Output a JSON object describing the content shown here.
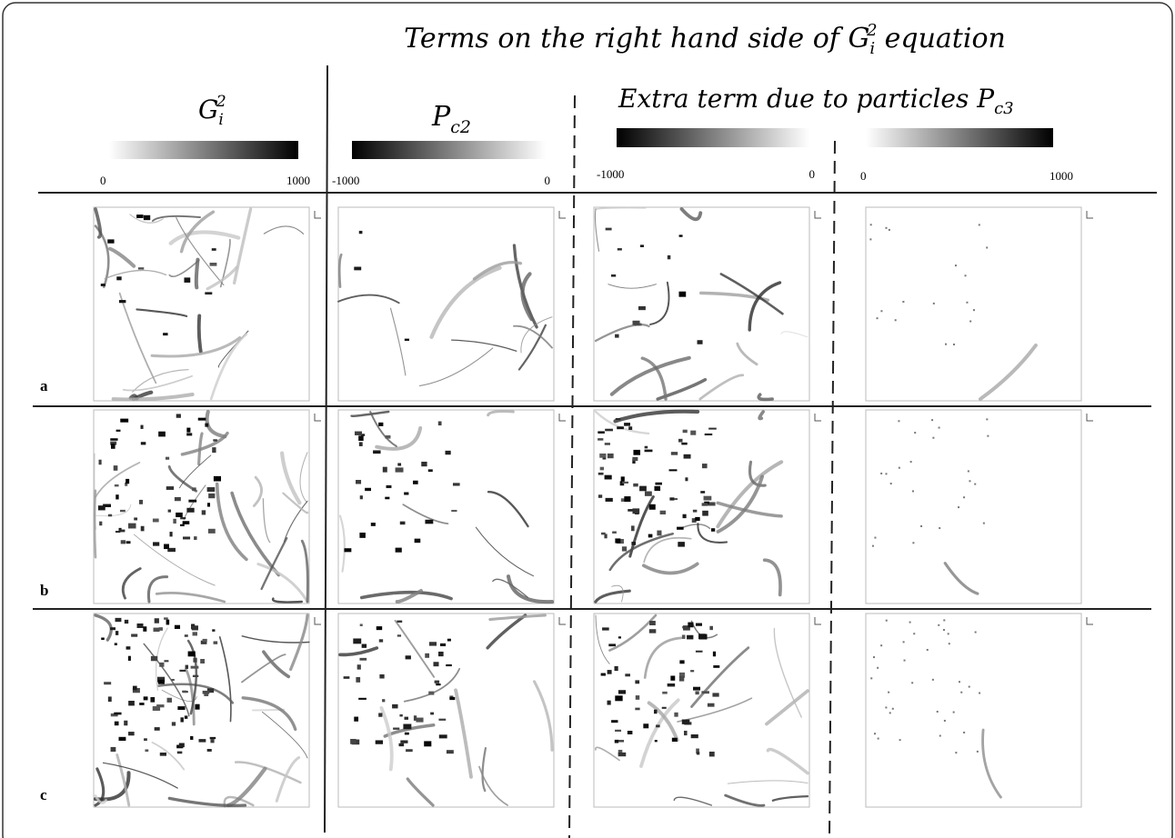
{
  "header": {
    "title": {
      "text": "Terms on the right hand side of",
      "symbol": "G",
      "subscript": "i",
      "superscript": "2",
      "suffix": "equation"
    }
  },
  "columns": [
    {
      "label": {
        "symbol": "G",
        "subscript": "i",
        "superscript": "2"
      },
      "colorbar": {
        "min": "0",
        "max": "1000"
      }
    },
    {
      "label": {
        "symbol": "P",
        "subscript": "c2"
      },
      "colorbar": {
        "min": "-1000",
        "max": "0"
      }
    },
    {
      "label": {
        "text": "Extra term due to particles",
        "symbol": "P",
        "subscript": "c3"
      },
      "colorbar": {
        "min": "-1000",
        "max": "0"
      }
    },
    {
      "colorbar": {
        "min": "0",
        "max": "1000"
      }
    }
  ],
  "rows": [
    {
      "label": "a"
    },
    {
      "label": "b"
    },
    {
      "label": "c"
    }
  ]
}
